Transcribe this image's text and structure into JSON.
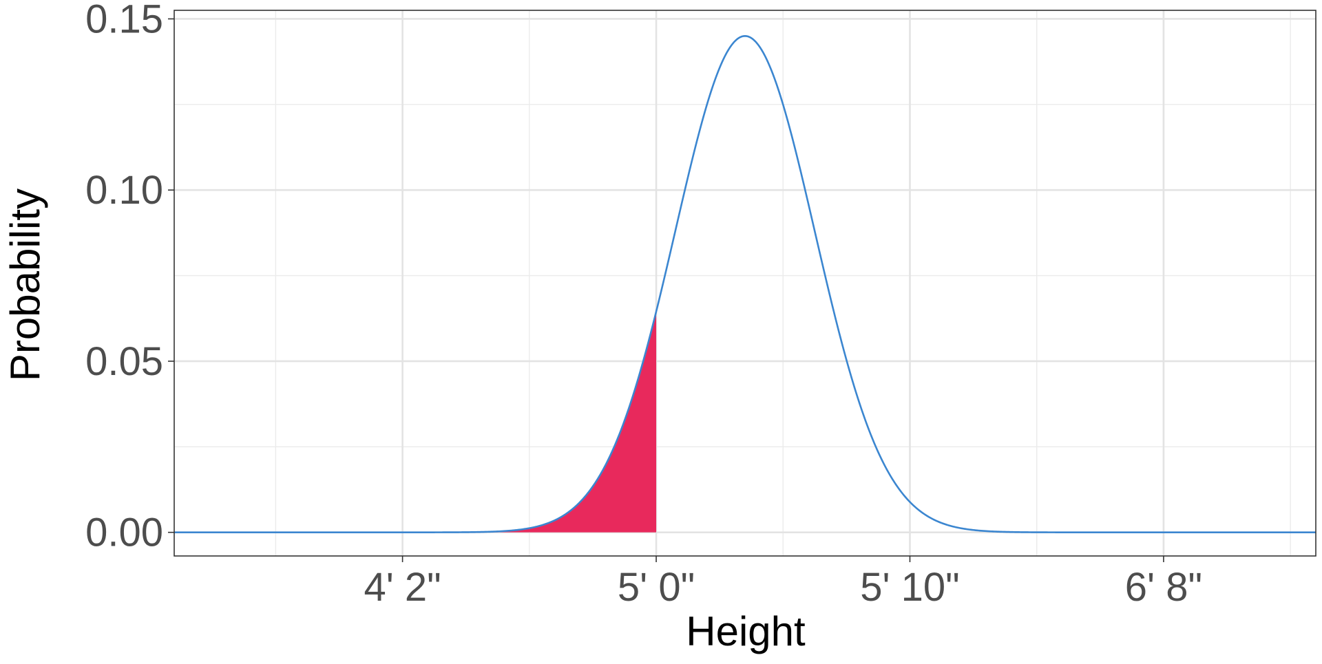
{
  "chart_data": {
    "type": "area",
    "title": "",
    "xlabel": "Height",
    "ylabel": "Probability",
    "x_unit": "inches",
    "xlim": [
      41,
      86
    ],
    "ylim": [
      -0.0069,
      0.1525
    ],
    "x_ticks": [
      {
        "value": 50,
        "label": "4' 2\""
      },
      {
        "value": 60,
        "label": "5' 0\""
      },
      {
        "value": 70,
        "label": "5' 10\""
      },
      {
        "value": 80,
        "label": "6' 8\""
      }
    ],
    "x_minor_ticks": [
      45,
      55,
      65,
      75,
      85
    ],
    "y_ticks": [
      {
        "value": 0.0,
        "label": "0.00"
      },
      {
        "value": 0.05,
        "label": "0.05"
      },
      {
        "value": 0.1,
        "label": "0.10"
      },
      {
        "value": 0.15,
        "label": "0.15"
      }
    ],
    "y_minor_ticks": [
      0.025,
      0.075,
      0.125
    ],
    "grid": true,
    "series": [
      {
        "kind": "normal-density-line",
        "mean": 63.5,
        "sd": 2.75,
        "peak": 0.145,
        "x_range": [
          41,
          86
        ],
        "color": "#3b86d0"
      }
    ],
    "shaded_region": {
      "x_range": [
        41,
        60
      ],
      "color": "#e8295c"
    }
  }
}
